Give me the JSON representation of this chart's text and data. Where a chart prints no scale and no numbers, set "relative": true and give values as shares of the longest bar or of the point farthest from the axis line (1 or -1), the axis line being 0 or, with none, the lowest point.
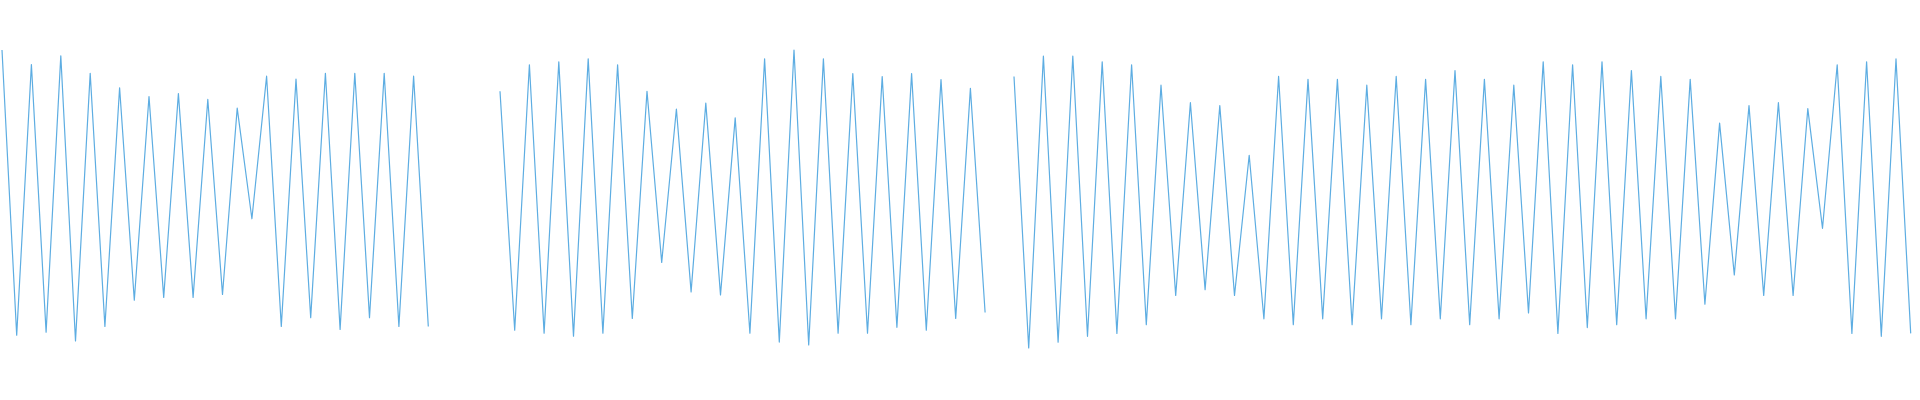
{
  "chart_data": [
    {
      "type": "line",
      "relative": true,
      "line_style": "solid",
      "marker": "none",
      "categories": [
        null,
        null,
        null,
        null,
        null,
        null,
        null,
        null,
        null,
        null,
        null,
        null,
        null,
        null,
        null,
        null,
        null,
        null,
        null,
        null,
        null,
        null,
        null,
        null,
        null,
        null,
        null,
        null,
        null,
        null
      ],
      "series": [
        {
          "color": "#5dade2",
          "values": [
            1,
            0.02,
            0.95,
            0.03,
            0.98,
            0,
            0.92,
            0.05,
            0.87,
            0.14,
            0.84,
            0.15,
            0.85,
            0.15,
            0.83,
            0.16,
            0.8,
            0.42,
            0.91,
            0.05,
            0.9,
            0.08,
            0.92,
            0.04,
            0.92,
            0.08,
            0.92,
            0.05,
            0.91,
            0.05
          ]
        }
      ]
    },
    {
      "type": "line",
      "relative": true,
      "line_style": "solid",
      "marker": "none",
      "categories": [
        null,
        null,
        null,
        null,
        null,
        null,
        null,
        null,
        null,
        null,
        null,
        null,
        null,
        null,
        null,
        null,
        null,
        null,
        null,
        null,
        null,
        null,
        null,
        null,
        null,
        null,
        null,
        null,
        null,
        null,
        null,
        null,
        null,
        null
      ],
      "series": [
        {
          "color": "#5dade2",
          "values": [
            0.86,
            0.05,
            0.95,
            0.04,
            0.96,
            0.03,
            0.97,
            0.04,
            0.95,
            0.09,
            0.86,
            0.28,
            0.8,
            0.18,
            0.82,
            0.17,
            0.77,
            0.04,
            0.97,
            0.01,
            1,
            0,
            0.97,
            0.04,
            0.92,
            0.04,
            0.91,
            0.06,
            0.92,
            0.05,
            0.9,
            0.09,
            0.87,
            0.11
          ]
        }
      ]
    },
    {
      "type": "line",
      "relative": true,
      "line_style": "solid",
      "marker": "none",
      "categories": [
        null,
        null,
        null,
        null,
        null,
        null,
        null,
        null,
        null,
        null,
        null,
        null,
        null,
        null,
        null,
        null,
        null,
        null,
        null,
        null,
        null,
        null,
        null,
        null,
        null,
        null,
        null,
        null,
        null,
        null,
        null,
        null,
        null,
        null,
        null,
        null,
        null,
        null,
        null,
        null,
        null,
        null,
        null,
        null,
        null,
        null,
        null,
        null,
        null,
        null,
        null,
        null,
        null,
        null,
        null,
        null,
        null,
        null,
        null,
        null,
        null,
        null
      ],
      "series": [
        {
          "color": "#5dade2",
          "values": [
            0.93,
            0,
            1,
            0.02,
            1,
            0.04,
            0.98,
            0.05,
            0.97,
            0.08,
            0.9,
            0.18,
            0.84,
            0.2,
            0.83,
            0.18,
            0.66,
            0.1,
            0.93,
            0.08,
            0.92,
            0.1,
            0.92,
            0.08,
            0.9,
            0.1,
            0.93,
            0.08,
            0.92,
            0.1,
            0.95,
            0.08,
            0.92,
            0.1,
            0.9,
            0.12,
            0.98,
            0.05,
            0.97,
            0.07,
            0.98,
            0.08,
            0.95,
            0.1,
            0.93,
            0.1,
            0.92,
            0.15,
            0.77,
            0.25,
            0.83,
            0.18,
            0.84,
            0.18,
            0.82,
            0.41,
            0.97,
            0.05,
            0.98,
            0.04,
            0.99,
            0.05
          ]
        }
      ]
    }
  ]
}
